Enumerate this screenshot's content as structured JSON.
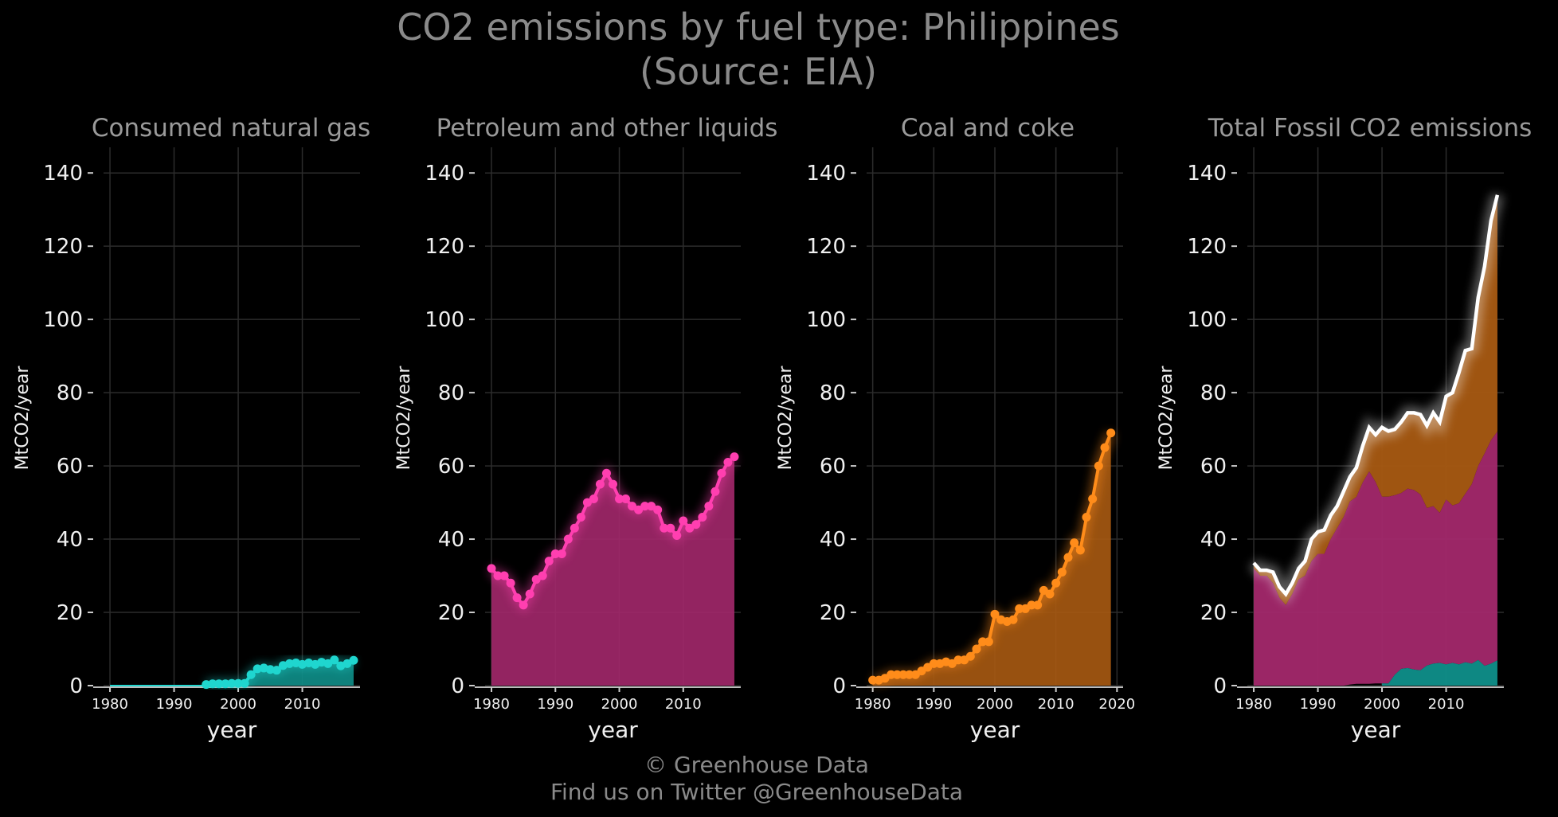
{
  "title": {
    "line1": "CO2 emissions by fuel type: Philippines",
    "line2": "(Source: EIA)"
  },
  "footer": {
    "line1": "© Greenhouse Data",
    "line2": "Find us on Twitter @GreenhouseData"
  },
  "colors": {
    "gas": "#1fd6cf",
    "petroleum": "#ff3fb0",
    "coal": "#ff8c1a",
    "total": "#ffffff",
    "gas_fill": "#0f8f8a",
    "petroleum_fill": "#a3286b",
    "coal_fill": "#a85a12"
  },
  "chart_data": [
    {
      "type": "area",
      "title": "Consumed natural gas",
      "xlabel": "year",
      "ylabel": "MtCO2/year",
      "ylim": [
        0,
        147
      ],
      "xlim": [
        1979,
        2019
      ],
      "xticks": [
        "1980",
        "1990",
        "2000",
        "2010"
      ],
      "yticks": [
        "0",
        "20",
        "40",
        "60",
        "80",
        "100",
        "120",
        "140"
      ],
      "series": [
        {
          "x": [
            1995,
            1996,
            1997,
            1998,
            1999,
            2000,
            2001,
            2002,
            2003,
            2004,
            2005,
            2006,
            2007,
            2008,
            2009,
            2010,
            2011,
            2012,
            2013,
            2014,
            2015,
            2016,
            2017,
            2018
          ],
          "values": [
            0.3,
            0.5,
            0.5,
            0.5,
            0.6,
            0.6,
            0.6,
            3.0,
            4.6,
            4.8,
            4.4,
            4.2,
            5.5,
            6.0,
            6.2,
            5.8,
            6.2,
            5.8,
            6.4,
            6.0,
            7.0,
            5.4,
            6.0,
            6.9
          ]
        }
      ]
    },
    {
      "type": "area",
      "title": "Petroleum and other liquids",
      "xlabel": "year",
      "ylabel": "MtCO2/year",
      "ylim": [
        0,
        147
      ],
      "xlim": [
        1979,
        2019
      ],
      "xticks": [
        "1980",
        "1990",
        "2000",
        "2010"
      ],
      "yticks": [
        "0",
        "20",
        "40",
        "60",
        "80",
        "100",
        "120",
        "140"
      ],
      "series": [
        {
          "x": [
            1980,
            1981,
            1982,
            1983,
            1984,
            1985,
            1986,
            1987,
            1988,
            1989,
            1990,
            1991,
            1992,
            1993,
            1994,
            1995,
            1996,
            1997,
            1998,
            1999,
            2000,
            2001,
            2002,
            2003,
            2004,
            2005,
            2006,
            2007,
            2008,
            2009,
            2010,
            2011,
            2012,
            2013,
            2014,
            2015,
            2016,
            2017,
            2018
          ],
          "values": [
            32,
            30,
            30,
            28,
            24,
            22,
            25,
            29,
            30,
            34,
            36,
            36,
            40,
            43,
            46,
            50,
            51,
            55,
            58,
            55,
            51,
            51,
            49,
            48,
            49,
            49,
            48,
            43,
            43,
            41,
            45,
            43,
            44,
            46,
            49,
            53,
            58,
            61,
            62.5
          ]
        }
      ]
    },
    {
      "type": "area",
      "title": "Coal and coke",
      "xlabel": "year",
      "ylabel": "MtCO2/year",
      "ylim": [
        0,
        147
      ],
      "xlim": [
        1979,
        2021
      ],
      "xticks": [
        "1980",
        "1990",
        "2000",
        "2010",
        "2020"
      ],
      "yticks": [
        "0",
        "20",
        "40",
        "60",
        "80",
        "100",
        "120",
        "140"
      ],
      "series": [
        {
          "x": [
            1980,
            1981,
            1982,
            1983,
            1984,
            1985,
            1986,
            1987,
            1988,
            1989,
            1990,
            1991,
            1992,
            1993,
            1994,
            1995,
            1996,
            1997,
            1998,
            1999,
            2000,
            2001,
            2002,
            2003,
            2004,
            2005,
            2006,
            2007,
            2008,
            2009,
            2010,
            2011,
            2012,
            2013,
            2014,
            2015,
            2016,
            2017,
            2018,
            2019
          ],
          "values": [
            1.5,
            1.5,
            2,
            3,
            3,
            3,
            3,
            3,
            4,
            5,
            6,
            6,
            6.5,
            6,
            7,
            7,
            8,
            10,
            12,
            12,
            19.5,
            18,
            17.5,
            18,
            21,
            21,
            22,
            22,
            26,
            25,
            28,
            31,
            35,
            39,
            37,
            46,
            51,
            60,
            65,
            69
          ]
        }
      ]
    },
    {
      "type": "area",
      "title": "Total Fossil CO2 emissions",
      "xlabel": "year",
      "ylabel": "MtCO2/year",
      "ylim": [
        0,
        147
      ],
      "xlim": [
        1979,
        2019
      ],
      "xticks": [
        "1980",
        "1990",
        "2000",
        "2010"
      ],
      "yticks": [
        "0",
        "20",
        "40",
        "60",
        "80",
        "100",
        "120",
        "140"
      ],
      "series": [
        {
          "x": [
            1980,
            1981,
            1982,
            1983,
            1984,
            1985,
            1986,
            1987,
            1988,
            1989,
            1990,
            1991,
            1992,
            1993,
            1994,
            1995,
            1996,
            1997,
            1998,
            1999,
            2000,
            2001,
            2002,
            2003,
            2004,
            2005,
            2006,
            2007,
            2008,
            2009,
            2010,
            2011,
            2012,
            2013,
            2014,
            2015,
            2016,
            2017,
            2018
          ],
          "values": [
            33.5,
            31.5,
            31.5,
            31,
            27,
            25,
            28,
            32,
            34,
            40,
            42,
            42.5,
            46.5,
            49,
            53,
            57,
            59.5,
            65.5,
            70.5,
            68.5,
            70.5,
            69.5,
            70,
            72,
            74.5,
            74.5,
            74,
            71,
            74.5,
            72,
            79,
            80,
            85.5,
            91.5,
            92,
            106,
            114.5,
            127,
            134
          ]
        }
      ]
    }
  ]
}
